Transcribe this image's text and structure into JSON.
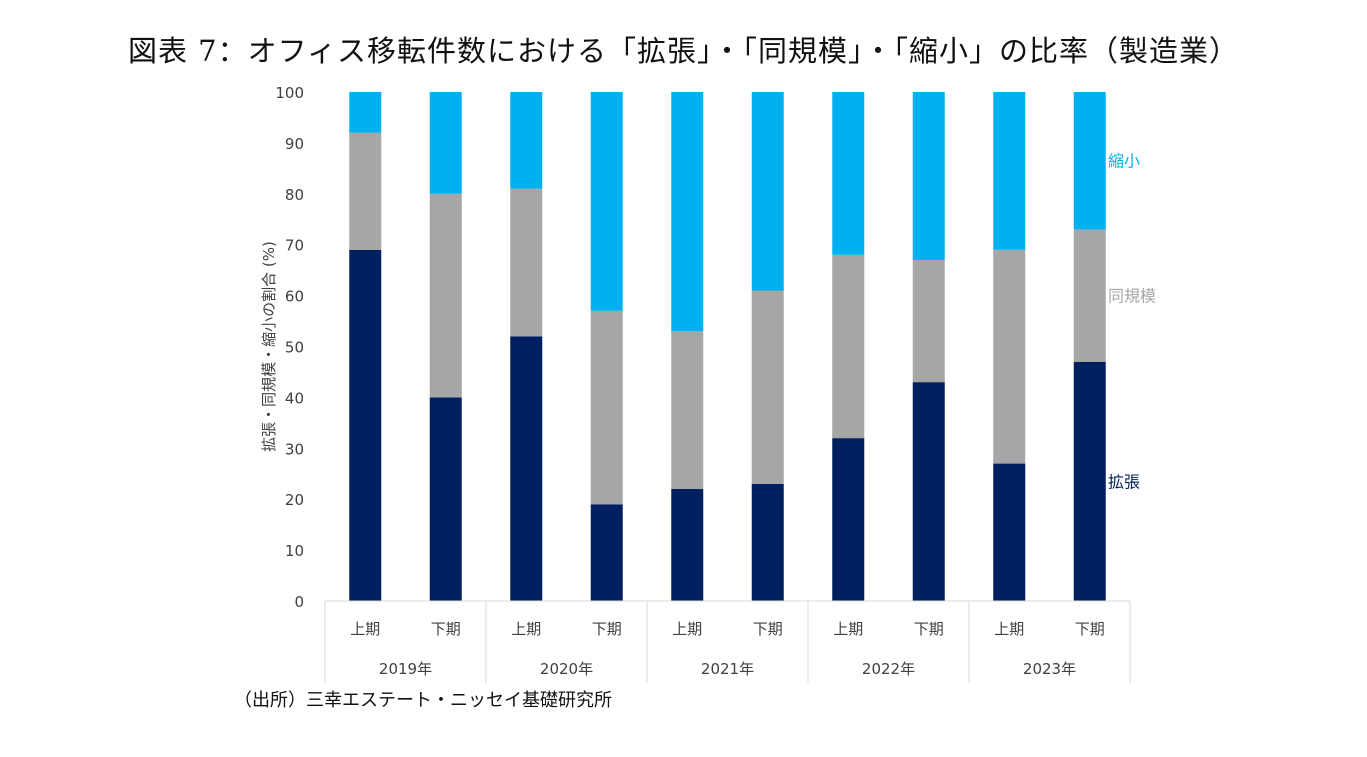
{
  "title": "図表 7：オフィス移転件数における「拡張」・「同規模」・「縮小」の比率（製造業）",
  "source": "（出所）三幸エステート・ニッセイ基礎研究所",
  "chart_data": {
    "type": "bar",
    "stacked": true,
    "ylabel": "拡張・同規模・縮小の割合 (%)",
    "ylim": [
      0,
      100
    ],
    "yticks": [
      0,
      10,
      20,
      30,
      40,
      50,
      60,
      70,
      80,
      90,
      100
    ],
    "categories": [
      "上期",
      "下期",
      "上期",
      "下期",
      "上期",
      "下期",
      "上期",
      "下期",
      "上期",
      "下期"
    ],
    "groups": [
      "2019年",
      "2020年",
      "2021年",
      "2022年",
      "2023年"
    ],
    "series": [
      {
        "name": "拡張",
        "color": "#002060",
        "values": [
          69,
          40,
          52,
          19,
          22,
          23,
          32,
          43,
          27,
          47
        ]
      },
      {
        "name": "同規模",
        "color": "#a6a6a6",
        "values": [
          23,
          40,
          29,
          38,
          31,
          38,
          36,
          24,
          42,
          26
        ]
      },
      {
        "name": "縮小",
        "color": "#00b0f0",
        "values": [
          8,
          20,
          19,
          43,
          47,
          39,
          32,
          33,
          31,
          27
        ]
      }
    ],
    "legend_placement": "right, inline labels"
  }
}
